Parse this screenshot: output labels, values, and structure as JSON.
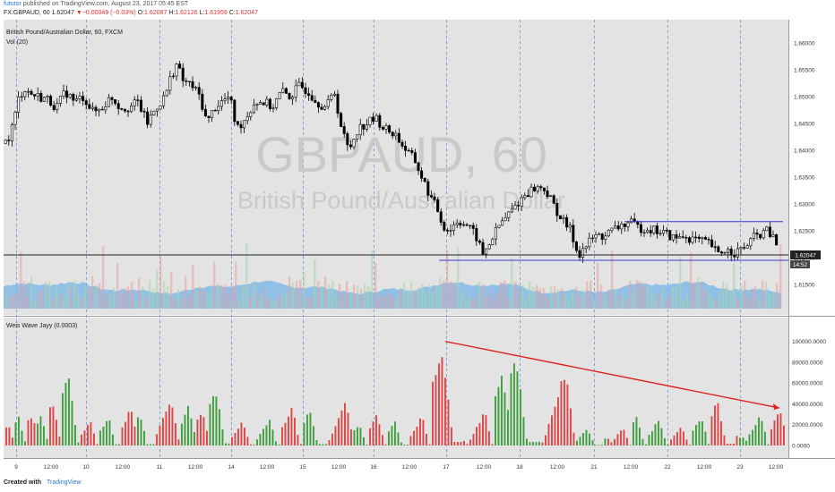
{
  "header": {
    "user": "fututor",
    "published": "published on TradingView.com, August 23, 2017 05:45 EST",
    "symbol_line_prefix": "FX:GBPAUD, 60",
    "last": "1.62047",
    "change_arrow": "▼",
    "change": "−0.00049 (−0.03%)",
    "open_label": "O:",
    "open": "1.62087",
    "high_label": "H:",
    "high": "1.62126",
    "low_label": "L:",
    "low": "1.61959",
    "close_label": "C:",
    "close": "1.62047"
  },
  "main_pane": {
    "title": "British Pound/Australian Dollar, 60, FXCM",
    "vol_label": "Vol (20)",
    "watermark_symbol": "GBPAUD, 60",
    "watermark_name": "British Pound/Australian Dollar",
    "price_badge": "1.62047",
    "time_badge": "14:52"
  },
  "lower_pane": {
    "title": "Weis Wave Jayy (0.0003)"
  },
  "footer": {
    "created_with": "Created with",
    "brand": "TradingView"
  },
  "colors": {
    "pane_bg": "#e3e3e3",
    "up": "#3e9e3e",
    "down": "#e04545",
    "volume": "#74b3e8",
    "trendline": "#e02020",
    "range_lines": "#3a3ad0",
    "grid_dash": "#7aa6d9"
  },
  "chart_data": [
    {
      "type": "candlestick",
      "title": "British Pound/Australian Dollar, 60, FXCM",
      "ylim": [
        1.6105,
        1.663
      ],
      "y_ticks": [
        "1.66000",
        "1.65500",
        "1.65000",
        "1.64500",
        "1.64000",
        "1.63500",
        "1.63000",
        "1.62500",
        "1.62000",
        "1.61500"
      ],
      "y_tick_values": [
        1.66,
        1.655,
        1.65,
        1.645,
        1.64,
        1.635,
        1.63,
        1.625,
        1.62,
        1.615
      ],
      "x_tick_labels": [
        "9",
        "12:00",
        "10",
        "12:00",
        "11",
        "12:00",
        "14",
        "12:00",
        "15",
        "12:00",
        "16",
        "12:00",
        "17",
        "12:00",
        "18",
        "12:00",
        "21",
        "12:00",
        "22",
        "12:00",
        "23",
        "12:00"
      ],
      "price_path": [
        [
          0,
          1.6405
        ],
        [
          8,
          1.642
        ],
        [
          15,
          1.646
        ],
        [
          20,
          1.65
        ],
        [
          26,
          1.6515
        ],
        [
          33,
          1.6505
        ],
        [
          42,
          1.65
        ],
        [
          52,
          1.6495
        ],
        [
          62,
          1.648
        ],
        [
          72,
          1.651
        ],
        [
          82,
          1.649
        ],
        [
          92,
          1.65
        ],
        [
          103,
          1.647
        ],
        [
          113,
          1.648
        ],
        [
          123,
          1.65
        ],
        [
          133,
          1.648
        ],
        [
          143,
          1.648
        ],
        [
          153,
          1.649
        ],
        [
          163,
          1.645
        ],
        [
          173,
          1.648
        ],
        [
          183,
          1.65
        ],
        [
          190,
          1.654
        ],
        [
          196,
          1.656
        ],
        [
          203,
          1.653
        ],
        [
          213,
          1.652
        ],
        [
          222,
          1.65
        ],
        [
          230,
          1.645
        ],
        [
          238,
          1.648
        ],
        [
          246,
          1.649
        ],
        [
          255,
          1.65
        ],
        [
          263,
          1.644
        ],
        [
          273,
          1.646
        ],
        [
          283,
          1.649
        ],
        [
          293,
          1.649
        ],
        [
          303,
          1.648
        ],
        [
          313,
          1.651
        ],
        [
          323,
          1.65
        ],
        [
          333,
          1.652
        ],
        [
          343,
          1.651
        ],
        [
          353,
          1.649
        ],
        [
          363,
          1.648
        ],
        [
          372,
          1.651
        ],
        [
          380,
          1.644
        ],
        [
          388,
          1.64
        ],
        [
          398,
          1.644
        ],
        [
          408,
          1.645
        ],
        [
          418,
          1.646
        ],
        [
          428,
          1.644
        ],
        [
          440,
          1.643
        ],
        [
          452,
          1.64
        ],
        [
          462,
          1.638
        ],
        [
          472,
          1.634
        ],
        [
          480,
          1.631
        ],
        [
          487,
          1.629
        ],
        [
          493,
          1.626
        ],
        [
          500,
          1.625
        ],
        [
          510,
          1.627
        ],
        [
          520,
          1.626
        ],
        [
          530,
          1.624
        ],
        [
          538,
          1.6205
        ],
        [
          546,
          1.623
        ],
        [
          556,
          1.626
        ],
        [
          566,
          1.628
        ],
        [
          576,
          1.63
        ],
        [
          586,
          1.632
        ],
        [
          596,
          1.633
        ],
        [
          606,
          1.633
        ],
        [
          616,
          1.63
        ],
        [
          626,
          1.627
        ],
        [
          636,
          1.625
        ],
        [
          644,
          1.6205
        ],
        [
          652,
          1.622
        ],
        [
          662,
          1.624
        ],
        [
          672,
          1.624
        ],
        [
          682,
          1.625
        ],
        [
          692,
          1.626
        ],
        [
          702,
          1.6265
        ],
        [
          712,
          1.6255
        ],
        [
          722,
          1.6255
        ],
        [
          732,
          1.625
        ],
        [
          742,
          1.6245
        ],
        [
          752,
          1.6235
        ],
        [
          762,
          1.624
        ],
        [
          772,
          1.6235
        ],
        [
          782,
          1.623
        ],
        [
          792,
          1.6225
        ],
        [
          800,
          1.6205
        ],
        [
          808,
          1.6215
        ],
        [
          818,
          1.621
        ],
        [
          828,
          1.6215
        ],
        [
          838,
          1.6235
        ],
        [
          848,
          1.6245
        ],
        [
          856,
          1.625
        ],
        [
          864,
          1.623
        ],
        [
          870,
          1.6205
        ]
      ],
      "annotations": {
        "horizontal_price_line": 1.6205,
        "range_top": 1.6267,
        "range_bottom": 1.6195
      },
      "volume_label": "Vol (20)"
    },
    {
      "type": "bar",
      "title": "Weis Wave Jayy (0.0003)",
      "ylim": [
        -5000,
        110000
      ],
      "y_ticks": [
        "100000.0000",
        "80000.0000",
        "60000.0000",
        "40000.0000",
        "20000.0000",
        "0.0000"
      ],
      "y_tick_values": [
        100000,
        80000,
        60000,
        40000,
        20000,
        0
      ],
      "series": [
        {
          "name": "",
          "color": "up",
          "waves": [
            [
              20,
              28000
            ],
            [
              45,
              30000
            ],
            [
              75,
              72000
            ],
            [
              120,
              30000
            ],
            [
              155,
              34000
            ],
            [
              210,
              40000
            ],
            [
              240,
              57000
            ],
            [
              300,
              28000
            ],
            [
              345,
              36000
            ],
            [
              400,
              22000
            ],
            [
              440,
              24000
            ],
            [
              560,
              76000
            ],
            [
              575,
              92000
            ],
            [
              655,
              18000
            ],
            [
              710,
              30000
            ],
            [
              735,
              28000
            ],
            [
              782,
              30000
            ],
            [
              848,
              32000
            ]
          ]
        },
        {
          "name": "",
          "color": "down",
          "waves": [
            [
              8,
              22000
            ],
            [
              35,
              32000
            ],
            [
              58,
              45000
            ],
            [
              100,
              24000
            ],
            [
              145,
              38000
            ],
            [
              190,
              48000
            ],
            [
              225,
              36000
            ],
            [
              270,
              26000
            ],
            [
              325,
              40000
            ],
            [
              385,
              44000
            ],
            [
              420,
              33000
            ],
            [
              470,
              30000
            ],
            [
              492,
              100000
            ],
            [
              540,
              35000
            ],
            [
              630,
              75000
            ],
            [
              695,
              18000
            ],
            [
              760,
              20000
            ],
            [
              800,
              46000
            ],
            [
              870,
              36000
            ]
          ]
        }
      ],
      "trendline": {
        "from": [
          497,
          100000
        ],
        "to": [
          870,
          36000
        ]
      }
    }
  ]
}
